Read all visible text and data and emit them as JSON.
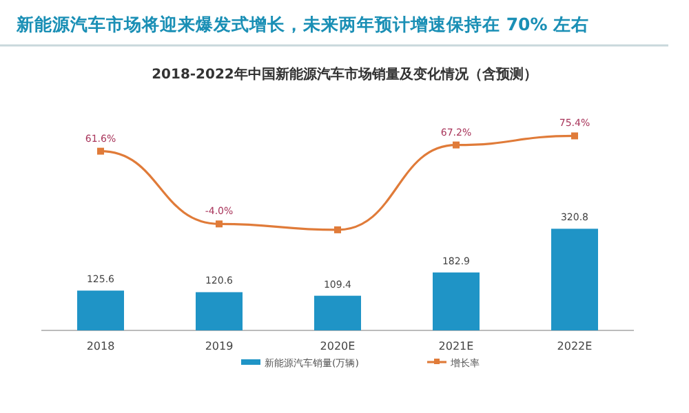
{
  "chart_data": {
    "type": "bar",
    "title": "新能源汽车市场将迎来爆发式增长，未来两年预计增速保持在 70% 左右",
    "subtitle": "2018-2022年中国新能源汽车市场销量及变化情况（含预测）",
    "categories": [
      "2018",
      "2019",
      "2020E",
      "2021E",
      "2022E"
    ],
    "ylim": [
      0,
      630
    ],
    "y2lim": [
      -100,
      80
    ],
    "tick_labels": "x",
    "legend": "bottom",
    "series": [
      {
        "name": "新能源汽车销量(万辆)",
        "color": "#1f94c6",
        "values": [
          125.6,
          120.6,
          109.4,
          182.9,
          320.8
        ],
        "value_labels": [
          "125.6",
          "120.6",
          "109.4",
          "182.9",
          "320.8"
        ]
      },
      {
        "name": "增长率",
        "type": "line",
        "axis": "y2",
        "color": "#e07b39",
        "marker": "square",
        "values": [
          61.6,
          -4.0,
          -9.3,
          67.2,
          75.4
        ],
        "value_labels": [
          "61.6%",
          "-4.0%",
          null,
          "67.2%",
          "75.4%"
        ]
      }
    ]
  }
}
